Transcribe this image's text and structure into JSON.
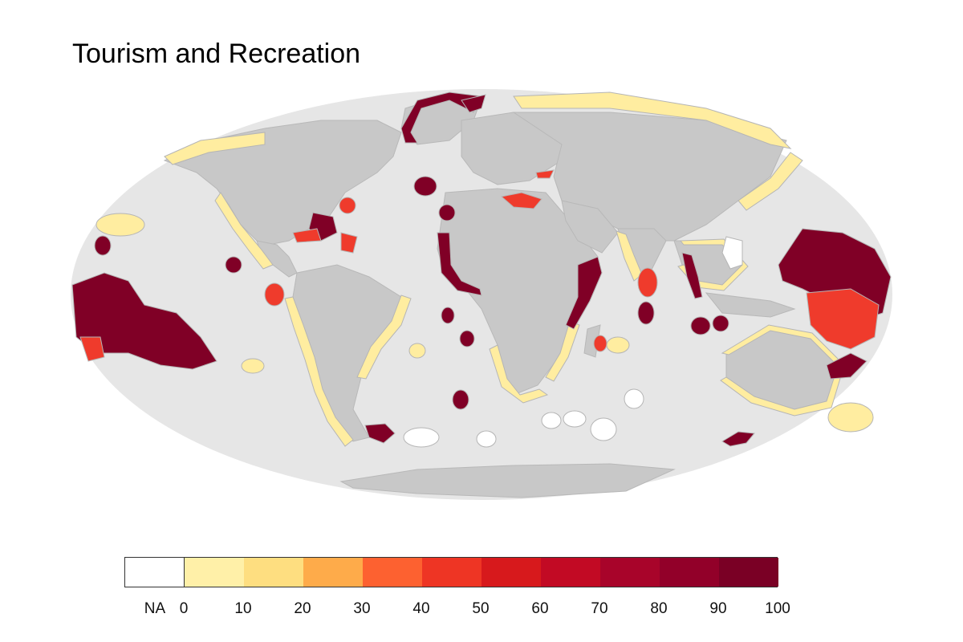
{
  "title": "Tourism and Recreation",
  "colors": {
    "ocean": "#e6e6e6",
    "land": "#c8c8c8",
    "land_border": "#b5b5b5",
    "low_score": "#ffeda0",
    "mid_score": "#ef3b2c",
    "high_score": "#800026",
    "na": "#ffffff"
  },
  "legend": {
    "na_label": "NA",
    "na_color": "#ffffff",
    "bins": [
      {
        "from": 0,
        "to": 10,
        "color": "#fff0a8"
      },
      {
        "from": 10,
        "to": 20,
        "color": "#fede80"
      },
      {
        "from": 20,
        "to": 30,
        "color": "#feab4a"
      },
      {
        "from": 30,
        "to": 40,
        "color": "#fd6130"
      },
      {
        "from": 40,
        "to": 50,
        "color": "#ee3524"
      },
      {
        "from": 50,
        "to": 60,
        "color": "#d7191c"
      },
      {
        "from": 60,
        "to": 70,
        "color": "#c20a24"
      },
      {
        "from": 70,
        "to": 80,
        "color": "#a8042a"
      },
      {
        "from": 80,
        "to": 90,
        "color": "#920029"
      },
      {
        "from": 90,
        "to": 100,
        "color": "#7a0025"
      }
    ],
    "tick_labels": [
      "0",
      "10",
      "20",
      "30",
      "40",
      "50",
      "60",
      "70",
      "80",
      "90",
      "100"
    ]
  }
}
